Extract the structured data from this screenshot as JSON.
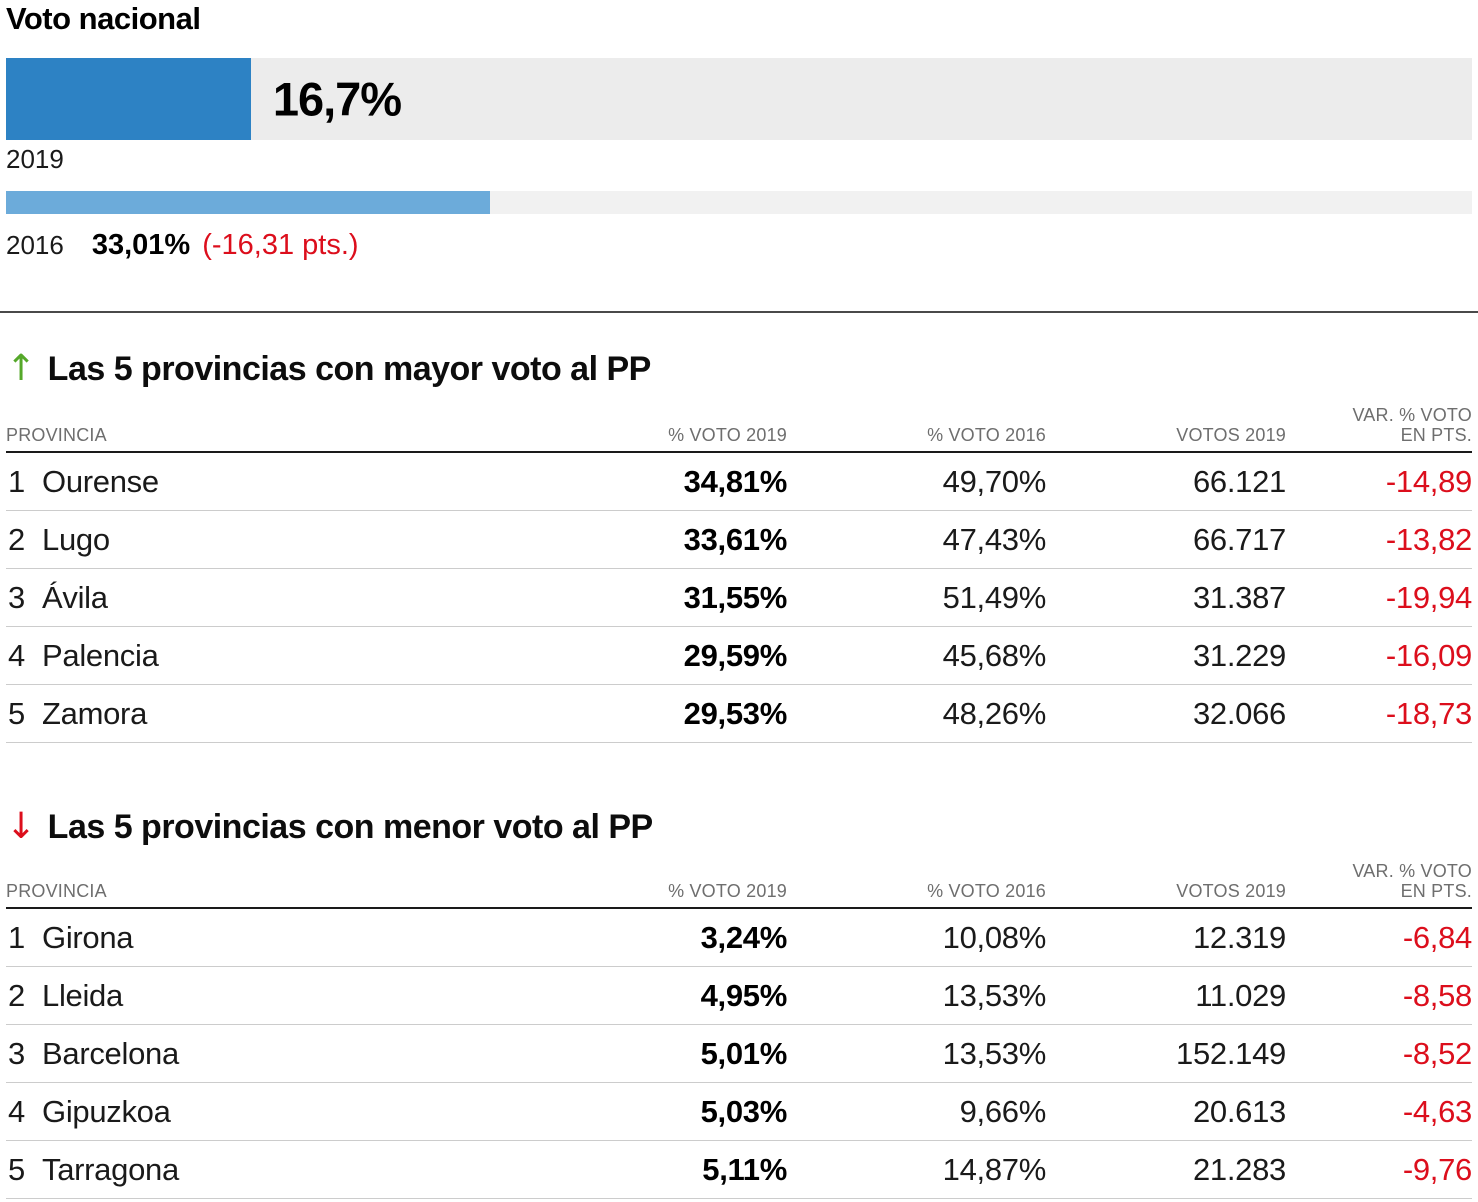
{
  "styles": {
    "bar_2019_color": "#2d82c4",
    "bar_2016_color": "#6cabda",
    "bar_track_color": "#ececec",
    "negative_red": "#dc0e1c",
    "positive_green": "#55a82a",
    "header_text_gray": "#6e6e6e"
  },
  "chart_data": [
    {
      "type": "bar",
      "title": "Voto nacional",
      "orientation": "horizontal",
      "xlim": [
        0,
        100
      ],
      "grid": false,
      "categories": [
        "2019",
        "2016"
      ],
      "values": [
        16.7,
        33.01
      ],
      "bars": [
        {
          "year": "2019",
          "pct": 16.7,
          "label": "16,7%"
        },
        {
          "year": "2016",
          "pct": 33.01,
          "label": "33,01%",
          "change": "(-16,31 pts.)"
        }
      ]
    },
    {
      "type": "table",
      "direction": "up",
      "arrow_glyph": "↑",
      "title": "Las 5 provincias con mayor voto al PP",
      "columns": {
        "provincia": "PROVINCIA",
        "voto2019": "% VOTO 2019",
        "voto2016": "% VOTO 2016",
        "votos2019": "VOTOS 2019",
        "var_line1": "VAR. % VOTO",
        "var_line2": "EN PTS."
      },
      "rows": [
        {
          "rank": "1",
          "provincia": "Ourense",
          "voto2019": "34,81%",
          "voto2016": "49,70%",
          "votos2019": "66.121",
          "var_pts": "-14,89"
        },
        {
          "rank": "2",
          "provincia": "Lugo",
          "voto2019": "33,61%",
          "voto2016": "47,43%",
          "votos2019": "66.717",
          "var_pts": "-13,82"
        },
        {
          "rank": "3",
          "provincia": "Ávila",
          "voto2019": "31,55%",
          "voto2016": "51,49%",
          "votos2019": "31.387",
          "var_pts": "-19,94"
        },
        {
          "rank": "4",
          "provincia": "Palencia",
          "voto2019": "29,59%",
          "voto2016": "45,68%",
          "votos2019": "31.229",
          "var_pts": "-16,09"
        },
        {
          "rank": "5",
          "provincia": "Zamora",
          "voto2019": "29,53%",
          "voto2016": "48,26%",
          "votos2019": "32.066",
          "var_pts": "-18,73"
        }
      ]
    },
    {
      "type": "table",
      "direction": "down",
      "arrow_glyph": "↓",
      "title": "Las 5 provincias con menor voto al PP",
      "columns": {
        "provincia": "PROVINCIA",
        "voto2019": "% VOTO 2019",
        "voto2016": "% VOTO 2016",
        "votos2019": "VOTOS 2019",
        "var_line1": "VAR. % VOTO",
        "var_line2": "EN PTS."
      },
      "rows": [
        {
          "rank": "1",
          "provincia": "Girona",
          "voto2019": "3,24%",
          "voto2016": "10,08%",
          "votos2019": "12.319",
          "var_pts": "-6,84"
        },
        {
          "rank": "2",
          "provincia": "Lleida",
          "voto2019": "4,95%",
          "voto2016": "13,53%",
          "votos2019": "11.029",
          "var_pts": "-8,58"
        },
        {
          "rank": "3",
          "provincia": "Barcelona",
          "voto2019": "5,01%",
          "voto2016": "13,53%",
          "votos2019": "152.149",
          "var_pts": "-8,52"
        },
        {
          "rank": "4",
          "provincia": "Gipuzkoa",
          "voto2019": "5,03%",
          "voto2016": "9,66%",
          "votos2019": "20.613",
          "var_pts": "-4,63"
        },
        {
          "rank": "5",
          "provincia": "Tarragona",
          "voto2019": "5,11%",
          "voto2016": "14,87%",
          "votos2019": "21.283",
          "var_pts": "-9,76"
        }
      ]
    }
  ]
}
